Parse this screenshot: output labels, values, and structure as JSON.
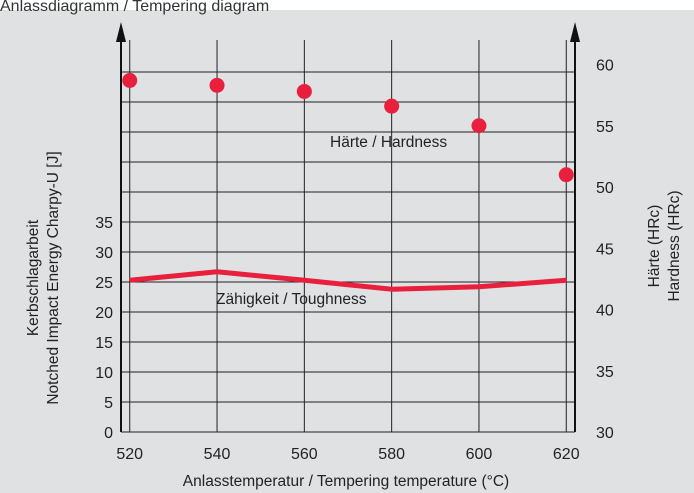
{
  "header": {
    "cut_title": "Anlassdiagramm / Tempering diagram"
  },
  "chart_data": {
    "type": "line",
    "x_label": "Anlasstemperatur / Tempering temperature (°C)",
    "y_left_label_line1": "Kerbschlagarbeit",
    "y_left_label_line2": "Notched Impact Energy Charpy-U [J]",
    "y_right_label_line1": "Härte (HRc)",
    "y_right_label_line2": "Hardness (HRc)",
    "x_ticks": [
      520,
      540,
      560,
      580,
      600,
      620
    ],
    "x_range": [
      518,
      622
    ],
    "y_left_ticks": [
      0,
      5,
      10,
      15,
      20,
      25,
      30,
      35
    ],
    "y_left_range": [
      0,
      72
    ],
    "y_right_ticks": [
      30,
      35,
      40,
      45,
      50,
      55,
      60
    ],
    "y_right_range": [
      30,
      62
    ],
    "series": [
      {
        "name": "Härte / Hardness",
        "kind": "scatter",
        "axis": "right",
        "x": [
          520,
          540,
          560,
          580,
          600,
          620
        ],
        "y": [
          58.7,
          58.3,
          57.8,
          56.6,
          55.0,
          51.0
        ]
      },
      {
        "name": "Zähigkeit / Toughness",
        "kind": "line",
        "axis": "left",
        "x": [
          520,
          540,
          560,
          580,
          600,
          620
        ],
        "y": [
          25.3,
          26.7,
          25.3,
          23.8,
          24.2,
          25.3
        ]
      }
    ],
    "grid": true,
    "colors": {
      "series": "#e8203d",
      "grid": "#222222",
      "background": "#dfe1e3"
    }
  }
}
